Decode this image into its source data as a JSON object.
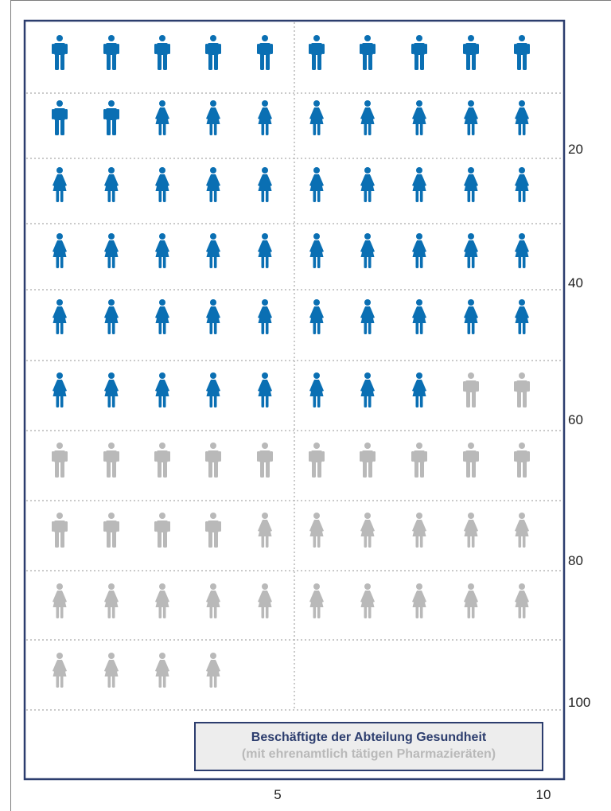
{
  "chart_data": {
    "type": "pictogram",
    "rows": 10,
    "per_row": 10,
    "total": 94,
    "groups": [
      {
        "name": "",
        "icon": "male-figure-icon",
        "color": "#0a6fb3",
        "count": 12
      },
      {
        "name": "",
        "icon": "female-figure-icon",
        "color": "#0a6fb3",
        "count": 46
      },
      {
        "name": "",
        "icon": "male-figure-icon",
        "color": "#b9b9b9",
        "count": 16
      },
      {
        "name": "",
        "icon": "female-figure-icon",
        "color": "#b9b9b9",
        "count": 20
      }
    ],
    "y_ticks": [
      "20",
      "40",
      "60",
      "80",
      "100"
    ],
    "x_ticks": [
      "5",
      "10"
    ],
    "legend": {
      "title": "Beschäftigte der Abteilung Gesundheit",
      "subtitle": "(mit ehrenamtlich tätigen Pharmazieräten)"
    },
    "colors": {
      "frame": "#2c3d6e",
      "gridline": "#b9b9b9"
    }
  }
}
